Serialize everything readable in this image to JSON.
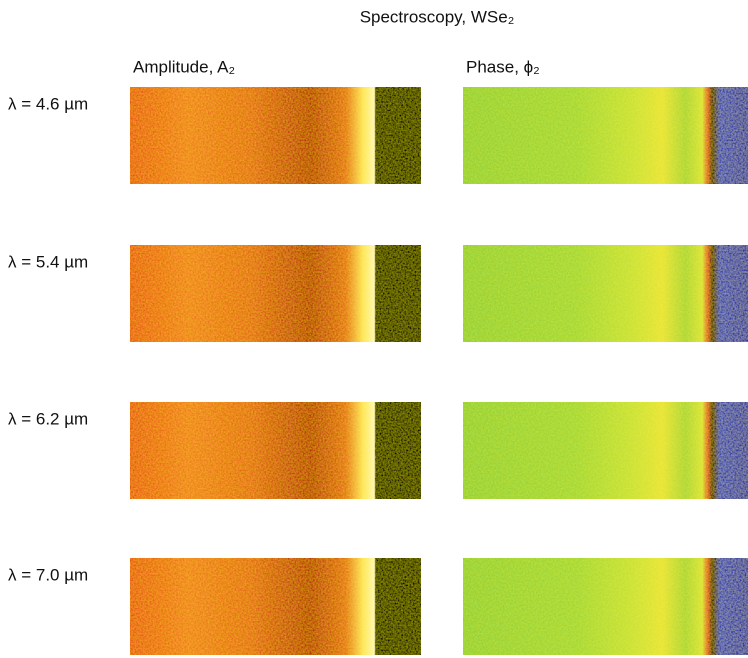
{
  "title": "Spectroscopy, WSe₂",
  "columns": [
    "Amplitude, A₂",
    "Phase, ϕ₂"
  ],
  "rows": [
    "λ = 4.6 µm",
    "λ = 5.4 µm",
    "λ = 6.2 µm",
    "λ = 7.0 µm"
  ]
}
